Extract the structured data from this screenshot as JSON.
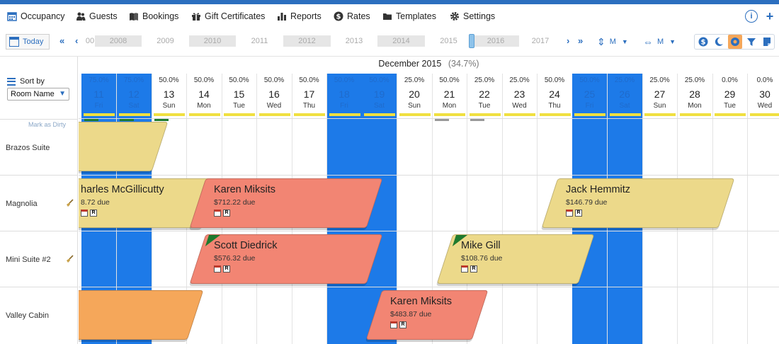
{
  "nav": {
    "items": [
      {
        "label": "Occupancy",
        "icon": "calendar-grid-icon"
      },
      {
        "label": "Guests",
        "icon": "guests-icon"
      },
      {
        "label": "Bookings",
        "icon": "book-icon"
      },
      {
        "label": "Gift Certificates",
        "icon": "gift-icon"
      },
      {
        "label": "Reports",
        "icon": "bar-chart-icon"
      },
      {
        "label": "Rates",
        "icon": "dollar-circle-icon"
      },
      {
        "label": "Templates",
        "icon": "folder-icon"
      },
      {
        "label": "Settings",
        "icon": "gear-icon"
      }
    ],
    "info_glyph": "i",
    "add_glyph": "+"
  },
  "toolbar": {
    "today_label": "Today",
    "years": [
      "00",
      "2008",
      "2009",
      "2010",
      "2011",
      "2012",
      "2013",
      "2014",
      "2015",
      "2016",
      "2017"
    ],
    "row_zoom_label": "M",
    "col_zoom_label": "M"
  },
  "sort": {
    "label": "Sort by",
    "selected": "Room Name"
  },
  "mark_dirty_label": "Mark as Dirty",
  "calendar": {
    "month_label": "December 2015",
    "month_occupancy": "(34.7%)",
    "days": [
      {
        "num": "11",
        "name": "Fri",
        "pct": "75.0%",
        "weekend": true
      },
      {
        "num": "12",
        "name": "Sat",
        "pct": "75.0%",
        "weekend": true
      },
      {
        "num": "13",
        "name": "Sun",
        "pct": "50.0%",
        "weekend": false
      },
      {
        "num": "14",
        "name": "Mon",
        "pct": "50.0%",
        "weekend": false
      },
      {
        "num": "15",
        "name": "Tue",
        "pct": "50.0%",
        "weekend": false
      },
      {
        "num": "16",
        "name": "Wed",
        "pct": "50.0%",
        "weekend": false
      },
      {
        "num": "17",
        "name": "Thu",
        "pct": "50.0%",
        "weekend": false
      },
      {
        "num": "18",
        "name": "Fri",
        "pct": "50.0%",
        "weekend": true
      },
      {
        "num": "19",
        "name": "Sat",
        "pct": "50.0%",
        "weekend": true
      },
      {
        "num": "20",
        "name": "Sun",
        "pct": "25.0%",
        "weekend": false
      },
      {
        "num": "21",
        "name": "Mon",
        "pct": "50.0%",
        "weekend": false
      },
      {
        "num": "22",
        "name": "Tue",
        "pct": "25.0%",
        "weekend": false
      },
      {
        "num": "23",
        "name": "Wed",
        "pct": "25.0%",
        "weekend": false
      },
      {
        "num": "24",
        "name": "Thu",
        "pct": "50.0%",
        "weekend": false
      },
      {
        "num": "25",
        "name": "Fri",
        "pct": "50.0%",
        "weekend": true
      },
      {
        "num": "26",
        "name": "Sat",
        "pct": "25.0%",
        "weekend": true
      },
      {
        "num": "27",
        "name": "Sun",
        "pct": "25.0%",
        "weekend": false
      },
      {
        "num": "28",
        "name": "Mon",
        "pct": "25.0%",
        "weekend": false
      },
      {
        "num": "29",
        "name": "Tue",
        "pct": "0.0%",
        "weekend": false
      },
      {
        "num": "30",
        "name": "Wed",
        "pct": "0.0%",
        "weekend": false
      }
    ]
  },
  "rooms": [
    {
      "name": "Brazos Suite",
      "dirty": false
    },
    {
      "name": "Magnolia",
      "dirty": true
    },
    {
      "name": "Mini Suite #2",
      "dirty": true
    },
    {
      "name": "Valley Cabin",
      "dirty": false
    }
  ],
  "bookings": [
    {
      "guest": "",
      "due": "",
      "color": "#ecd98a"
    },
    {
      "guest": "harles McGillicutty",
      "due": "8.72 due",
      "color": "#ecd98a"
    },
    {
      "guest": "Karen Miksits",
      "due": "$712.22 due",
      "color": "#f28573"
    },
    {
      "guest": "Jack Hemmitz",
      "due": "$146.79 due",
      "color": "#ecd98a"
    },
    {
      "guest": "Scott Diedrick",
      "due": "$576.32 due",
      "color": "#f28573"
    },
    {
      "guest": "Mike Gill",
      "due": "$108.76 due",
      "color": "#ecd98a"
    },
    {
      "guest": "",
      "due": "",
      "color": "#f5a75a"
    },
    {
      "guest": "Karen Miksits",
      "due": "$483.87 due",
      "color": "#f28573"
    }
  ],
  "colors": {
    "accent": "#2c6fbf",
    "weekend": "#1d7ae8",
    "occupancy_bar": "#f0e040",
    "paid_corner": "#1e7a2e"
  }
}
